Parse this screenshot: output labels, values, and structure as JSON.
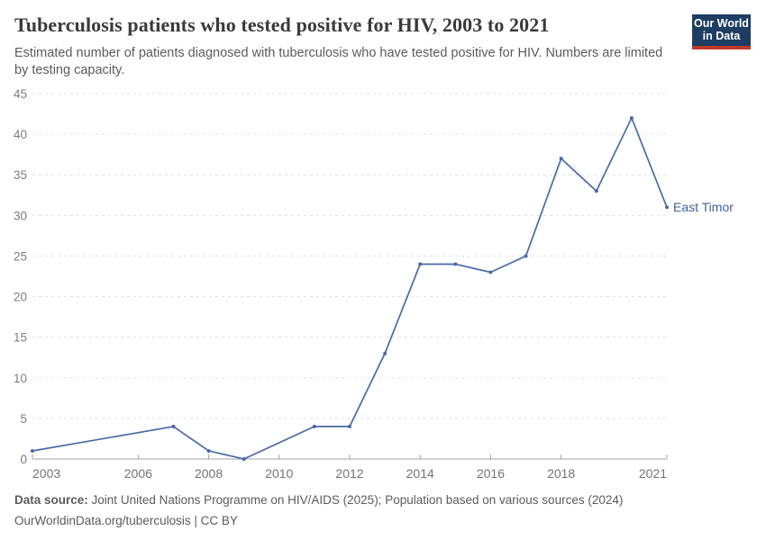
{
  "header": {
    "title": "Tuberculosis patients who tested positive for HIV, 2003 to 2021",
    "subtitle": "Estimated number of patients diagnosed with tuberculosis who have tested positive for HIV. Numbers are limited by testing capacity.",
    "logo": {
      "line1": "Our World",
      "line2": "in Data",
      "bg_color": "#1d3d63",
      "accent_color": "#c0392b"
    }
  },
  "chart_data": {
    "type": "line",
    "title": "Tuberculosis patients who tested positive for HIV, 2003 to 2021",
    "x": [
      2003,
      2007,
      2008,
      2009,
      2011,
      2012,
      2013,
      2014,
      2015,
      2016,
      2017,
      2018,
      2019,
      2020,
      2021
    ],
    "series": [
      {
        "name": "East Timor",
        "values": [
          1,
          4,
          1,
          0,
          4,
          4,
          13,
          24,
          24,
          23,
          25,
          37,
          33,
          42,
          31
        ]
      }
    ],
    "xlim": [
      2003,
      2021
    ],
    "ylim": [
      0,
      45
    ],
    "yticks": [
      0,
      5,
      10,
      15,
      20,
      25,
      30,
      35,
      40,
      45
    ],
    "xticks": [
      2003,
      2006,
      2008,
      2010,
      2012,
      2014,
      2016,
      2018,
      2021
    ],
    "grid": "horizontal-dashed",
    "legend_position": "label-at-line-end",
    "line_color": "#4a69a8",
    "series_label_color": "#41619d",
    "gridline_color": "#e0e0e0",
    "axis_line_color": "#a3a3a3",
    "ytick_label_color": "#7d7d7d",
    "xtick_label_color": "#737373"
  },
  "footer": {
    "datasource_label": "Data source:",
    "datasource_text": "Joint United Nations Programme on HIV/AIDS (2025); Population based on various sources (2024)",
    "citation": "OurWorldinData.org/tuberculosis | CC BY"
  }
}
